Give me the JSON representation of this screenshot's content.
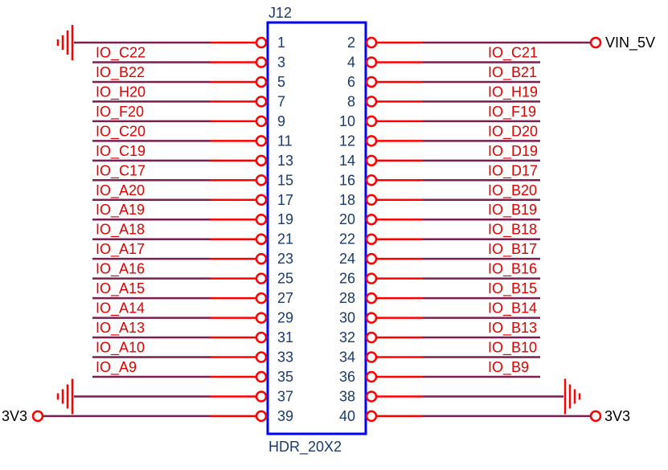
{
  "connector": {
    "designator": "J12",
    "value": "HDR_20X2",
    "pins": {
      "left": [
        1,
        3,
        5,
        7,
        9,
        11,
        13,
        15,
        17,
        19,
        21,
        23,
        25,
        27,
        29,
        31,
        33,
        35,
        37,
        39
      ],
      "right": [
        2,
        4,
        6,
        8,
        10,
        12,
        14,
        16,
        18,
        20,
        22,
        24,
        26,
        28,
        30,
        32,
        34,
        36,
        38,
        40
      ]
    }
  },
  "nets": {
    "left": [
      "IO_C22",
      "IO_B22",
      "IO_H20",
      "IO_F20",
      "IO_C20",
      "IO_C19",
      "IO_C17",
      "IO_A20",
      "IO_A19",
      "IO_A18",
      "IO_A17",
      "IO_A16",
      "IO_A15",
      "IO_A14",
      "IO_A13",
      "IO_A10",
      "IO_A9"
    ],
    "right": [
      "IO_C21",
      "IO_B21",
      "IO_H19",
      "IO_F19",
      "IO_D20",
      "IO_D19",
      "IO_D17",
      "IO_B20",
      "IO_B19",
      "IO_B18",
      "IO_B17",
      "IO_B16",
      "IO_B15",
      "IO_B14",
      "IO_B13",
      "IO_B10",
      "IO_B9"
    ]
  },
  "ports": {
    "pin2": "VIN_5V",
    "pin39": "3V3",
    "pin40": "3V3"
  }
}
